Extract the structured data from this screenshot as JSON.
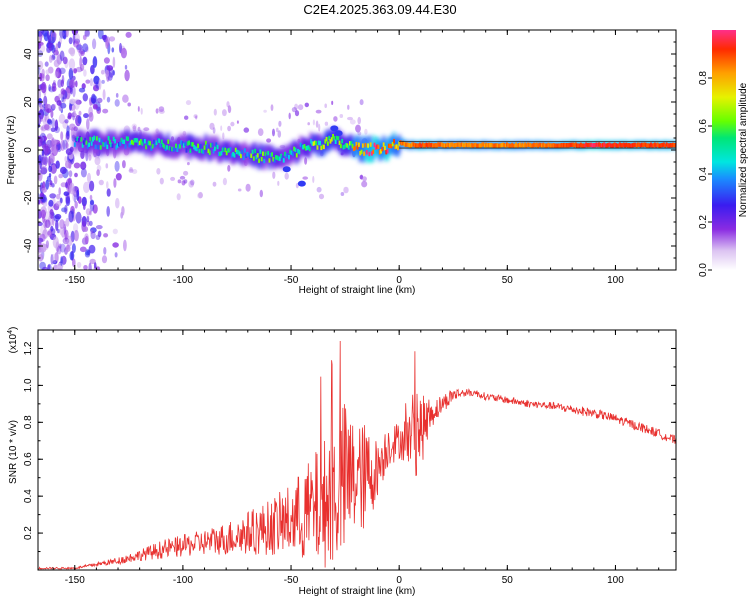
{
  "title": "C2E4.2025.363.09.44.E30",
  "chart_data": [
    {
      "type": "heatmap",
      "name": "spectrogram",
      "xlabel": "Height of straight line (km)",
      "ylabel": "Frequency (Hz)",
      "xlim": [
        -167,
        128
      ],
      "ylim": [
        -50,
        50
      ],
      "xticks": [
        -150,
        -100,
        -50,
        0,
        50,
        100
      ],
      "yticks": [
        -40,
        -20,
        0,
        20,
        40
      ],
      "colorbar": {
        "label": "Normalized spectral amplitude",
        "range": [
          0,
          1
        ],
        "ticks": [
          "0.0",
          "0.2",
          "0.4",
          "0.6",
          "0.8"
        ],
        "ticks_values": [
          0.0,
          0.2,
          0.4,
          0.6,
          0.8
        ]
      },
      "signal_track": {
        "x": [
          -150,
          -140,
          -130,
          -120,
          -110,
          -100,
          -90,
          -80,
          -70,
          -60,
          -55,
          -50,
          -45,
          -40,
          -35,
          -30,
          -25,
          -20,
          -15,
          -10,
          -5,
          0,
          5,
          10,
          20,
          30,
          50,
          70,
          90,
          110,
          128
        ],
        "freq_hz": [
          4,
          3,
          3,
          3,
          2,
          2,
          1,
          0,
          -2,
          -3,
          -4,
          -2,
          1,
          2,
          3,
          4,
          2,
          1,
          0,
          1,
          1,
          3,
          2,
          2,
          2,
          2,
          2,
          2,
          2,
          2,
          2
        ],
        "amplitude": [
          0.4,
          0.45,
          0.45,
          0.5,
          0.45,
          0.45,
          0.5,
          0.5,
          0.5,
          0.5,
          0.45,
          0.45,
          0.5,
          0.55,
          0.6,
          0.6,
          0.6,
          0.75,
          0.85,
          0.9,
          0.85,
          0.85,
          0.85,
          0.9,
          0.85,
          0.85,
          0.85,
          0.85,
          0.95,
          0.9,
          0.9
        ]
      },
      "noise_region": [
        -167,
        -125
      ]
    },
    {
      "type": "line",
      "name": "snr",
      "xlabel": "Height of straight line (km)",
      "ylabel": "SNR (10 * v/v)",
      "y_multiplier": "(x10",
      "y_multiplier_exp": "4",
      "y_multiplier_close": ")",
      "xlim": [
        -167,
        128
      ],
      "ylim": [
        0,
        1.3
      ],
      "xticks": [
        -150,
        -100,
        -50,
        0,
        50,
        100
      ],
      "yticks": [
        "0.2",
        "0.4",
        "0.6",
        "0.8",
        "1.0",
        "1.2"
      ],
      "yticks_values": [
        0.2,
        0.4,
        0.6,
        0.8,
        1.0,
        1.2
      ],
      "line_color": "#e8302e",
      "series": [
        {
          "name": "SNR",
          "x": [
            -167,
            -150,
            -140,
            -130,
            -120,
            -110,
            -100,
            -90,
            -80,
            -70,
            -60,
            -50,
            -40,
            -35,
            -30,
            -25,
            -20,
            -15,
            -10,
            -5,
            0,
            5,
            8,
            10,
            15,
            20,
            25,
            30,
            35,
            40,
            50,
            60,
            70,
            80,
            90,
            100,
            110,
            120,
            128
          ],
          "y": [
            0.01,
            0.01,
            0.03,
            0.05,
            0.08,
            0.11,
            0.13,
            0.15,
            0.17,
            0.2,
            0.23,
            0.27,
            0.32,
            0.36,
            0.42,
            0.48,
            0.5,
            0.5,
            0.55,
            0.68,
            0.7,
            0.72,
            0.8,
            0.75,
            0.85,
            0.9,
            0.95,
            0.96,
            0.96,
            0.94,
            0.92,
            0.9,
            0.89,
            0.87,
            0.85,
            0.82,
            0.78,
            0.74,
            0.7
          ],
          "noise": [
            0.005,
            0.005,
            0.01,
            0.02,
            0.03,
            0.05,
            0.06,
            0.07,
            0.09,
            0.12,
            0.15,
            0.2,
            0.3,
            0.35,
            0.4,
            0.45,
            0.3,
            0.3,
            0.15,
            0.12,
            0.1,
            0.15,
            0.3,
            0.2,
            0.08,
            0.05,
            0.04,
            0.02,
            0.02,
            0.02,
            0.02,
            0.02,
            0.02,
            0.025,
            0.025,
            0.025,
            0.025,
            0.025,
            0.025
          ]
        }
      ]
    }
  ]
}
